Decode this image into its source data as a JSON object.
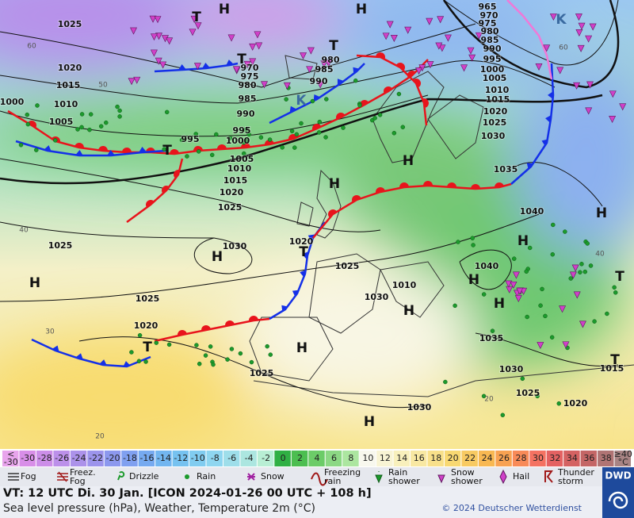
{
  "map": {
    "pressure_labels": [
      "1025",
      "1020",
      "1015",
      "1010",
      "1005",
      "1000",
      "970",
      "975",
      "980",
      "985",
      "990",
      "995",
      "995",
      "1000",
      "1005",
      "1010",
      "1015",
      "1020",
      "1025",
      "1030",
      "1025",
      "1025",
      "1020",
      "1020",
      "1025",
      "1030",
      "1010",
      "1025",
      "1030",
      "980",
      "985",
      "990",
      "965",
      "970",
      "975",
      "980",
      "985",
      "990",
      "995",
      "1000",
      "1005",
      "1010",
      "1015",
      "1020",
      "1025",
      "1030",
      "1035",
      "1040",
      "1040",
      "1035",
      "1030",
      "1025",
      "1020",
      "1015"
    ],
    "pressure_systems": [
      "T",
      "H",
      "H",
      "T",
      "T",
      "K",
      "K",
      "T",
      "H",
      "H",
      "H",
      "H",
      "T",
      "H",
      "H",
      "H",
      "H",
      "T",
      "H",
      "H",
      "H",
      "T",
      "T"
    ],
    "grid_labels": [
      "60",
      "50",
      "40",
      "30",
      "20",
      "60",
      "40",
      "20"
    ]
  },
  "colorbar": {
    "low": {
      "lines": [
        "<",
        "-30"
      ],
      "color": "#e8a4ec"
    },
    "steps": [
      {
        "value": -30,
        "color": "#d88ee8"
      },
      {
        "value": -28,
        "color": "#cc8ee8"
      },
      {
        "value": -26,
        "color": "#bc90ea"
      },
      {
        "value": -24,
        "color": "#ac92ea"
      },
      {
        "value": -22,
        "color": "#9c94ec"
      },
      {
        "value": -20,
        "color": "#8c98ee"
      },
      {
        "value": -18,
        "color": "#80a0f0"
      },
      {
        "value": -16,
        "color": "#76aaf0"
      },
      {
        "value": -14,
        "color": "#72b6f0"
      },
      {
        "value": -12,
        "color": "#76c2f0"
      },
      {
        "value": -10,
        "color": "#80ccf0"
      },
      {
        "value": -8,
        "color": "#8ed6f0"
      },
      {
        "value": -6,
        "color": "#9edeea"
      },
      {
        "value": -4,
        "color": "#ace6e0"
      },
      {
        "value": -2,
        "color": "#b8eed4"
      },
      {
        "value": 0,
        "color": "#30b044"
      },
      {
        "value": 2,
        "color": "#4cbe50"
      },
      {
        "value": 4,
        "color": "#6ccc68"
      },
      {
        "value": 6,
        "color": "#8cd884"
      },
      {
        "value": 8,
        "color": "#ace6a0"
      },
      {
        "value": 10,
        "color": "#f8f8ee"
      },
      {
        "value": 12,
        "color": "#f8f4d4"
      },
      {
        "value": 14,
        "color": "#f8f0bc"
      },
      {
        "value": 16,
        "color": "#f8e8a2"
      },
      {
        "value": 18,
        "color": "#f8e08a"
      },
      {
        "value": 20,
        "color": "#f8d872"
      },
      {
        "value": 22,
        "color": "#f8ca62"
      },
      {
        "value": 24,
        "color": "#f8b852"
      },
      {
        "value": 26,
        "color": "#f8a252"
      },
      {
        "value": 28,
        "color": "#f88a58"
      },
      {
        "value": 30,
        "color": "#f47262"
      },
      {
        "value": 32,
        "color": "#e46262"
      },
      {
        "value": 34,
        "color": "#d46262"
      },
      {
        "value": 36,
        "color": "#c46666"
      },
      {
        "value": 38,
        "color": "#b07474"
      }
    ],
    "high": {
      "lines": [
        "≥40",
        "°C"
      ],
      "color": "#a88484"
    }
  },
  "legend": [
    {
      "lines": [
        "Fog"
      ]
    },
    {
      "lines": [
        "Freez.",
        "Fog"
      ]
    },
    {
      "lines": [
        "Drizzle"
      ]
    },
    {
      "lines": [
        "Rain"
      ]
    },
    {
      "lines": [
        "Snow"
      ]
    },
    {
      "lines": [
        "Freezing",
        "rain"
      ]
    },
    {
      "lines": [
        "Rain",
        "shower"
      ]
    },
    {
      "lines": [
        "Snow",
        "shower"
      ]
    },
    {
      "lines": [
        "Hail"
      ]
    },
    {
      "lines": [
        "Thunder",
        "storm"
      ]
    }
  ],
  "footer": {
    "valid_time": "VT: 12 UTC Di.  30 Jan. [ICON 2024-01-26  00 UTC + 108 h]",
    "description": "Sea level pressure (hPa), Weather, Temperature 2m (°C)",
    "copyright": "© 2024 Deutscher Wetterdienst",
    "logo": "DWD"
  }
}
